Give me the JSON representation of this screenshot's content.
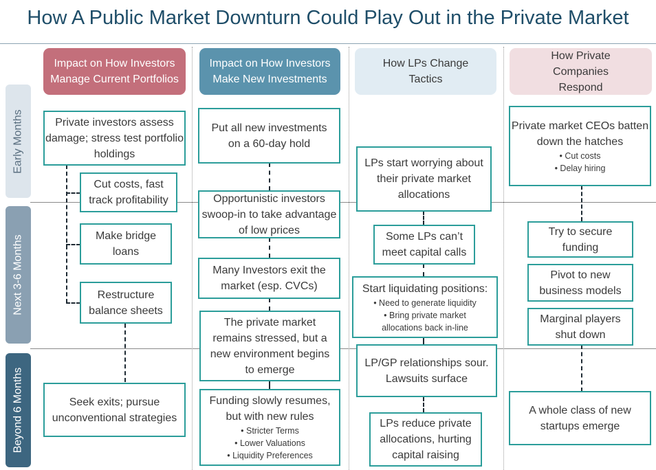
{
  "title": "How A Public Market Downturn Could Play Out in the Private Market",
  "rows": [
    "Early Months",
    "Next 3-6 Months",
    "Beyond 6 Months"
  ],
  "columns": [
    "Impact on How Investors Manage Current Portfolios",
    "Impact on How Investors Make New Investments",
    "How LPs Change Tactics",
    "How Private Companies Respond"
  ],
  "colors": {
    "teal_border": "#2b9d9a",
    "head_red": "#c36f7b",
    "head_blue": "#5b93ad",
    "head_light_blue": "#e1ecf3",
    "head_pink": "#f1dee1",
    "row_label_bg": "#dde5ec",
    "row_label_dark": "#8aa0b2",
    "row_label_darker": "#3d6680"
  },
  "col1": {
    "b1": "Private investors assess damage; stress test portfolio holdings",
    "b2": "Cut costs, fast track profitability",
    "b3": "Make bridge loans",
    "b4": "Restructure balance sheets",
    "b5": "Seek exits; pursue unconventional strategies"
  },
  "col2": {
    "b1": "Put all new investments on a 60-day hold",
    "b2": "Opportunistic investors swoop-in to take advantage of low prices",
    "b3": "Many Investors exit the market (esp. CVCs)",
    "b4": "The private market remains stressed, but a new environment begins to emerge",
    "b5": "Funding slowly resumes, but with new rules",
    "b5_bullets": [
      "Stricter Terms",
      "Lower Valuations",
      "Liquidity Preferences"
    ]
  },
  "col3": {
    "b1": "LPs start worrying about their private market allocations",
    "b2": "Some LPs can’t meet capital calls",
    "b3": "Start liquidating positions:",
    "b3_bullets": [
      "Need to generate liquidity",
      "Bring private market allocations back in-line"
    ],
    "b4": "LP/GP relationships sour. Lawsuits surface",
    "b5": "LPs reduce private allocations, hurting capital raising"
  },
  "col4": {
    "b1": "Private market CEOs batten down the hatches",
    "b1_bullets": [
      "Cut costs",
      "Delay hiring"
    ],
    "b2": "Try to secure funding",
    "b3": "Pivot to new business models",
    "b4": "Marginal players shut down",
    "b5": "A whole class of new startups emerge"
  }
}
